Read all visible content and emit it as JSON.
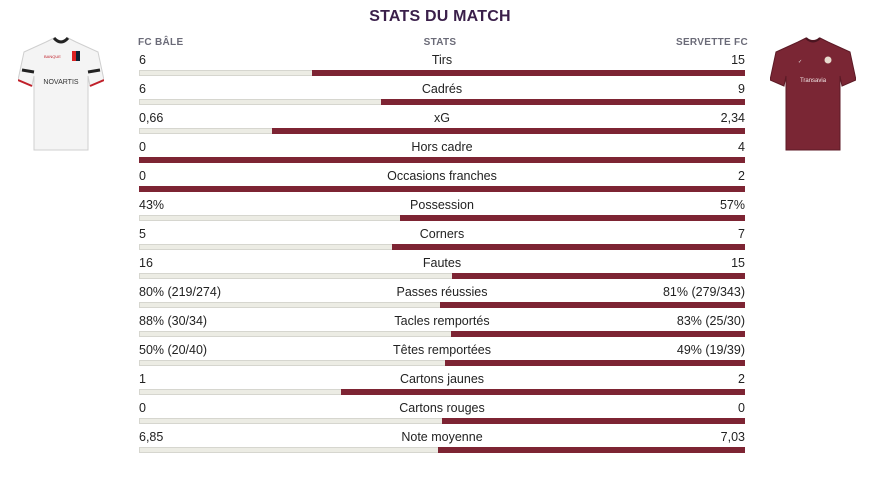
{
  "title": "STATS DU MATCH",
  "headers": {
    "home": "FC BÂLE",
    "stats": "STATS",
    "away": "SERVETTE FC"
  },
  "colors": {
    "away_bar": "#7d2433",
    "home_bar": "#ecece4",
    "title": "#3a1f4a"
  },
  "jerseys": {
    "home": {
      "sponsor": "NOVARTIS",
      "sleeve_text": "BANQUE"
    },
    "away": {
      "sponsor": "Transavia"
    }
  },
  "stats": [
    {
      "name": "Tirs",
      "home": "6",
      "away": "15",
      "home_share": 0.286
    },
    {
      "name": "Cadrés",
      "home": "6",
      "away": "9",
      "home_share": 0.4
    },
    {
      "name": "xG",
      "home": "0,66",
      "away": "2,34",
      "home_share": 0.22
    },
    {
      "name": "Hors cadre",
      "home": "0",
      "away": "4",
      "home_share": 0.0
    },
    {
      "name": "Occasions franches",
      "home": "0",
      "away": "2",
      "home_share": 0.0
    },
    {
      "name": "Possession",
      "home": "43%",
      "away": "57%",
      "home_share": 0.43
    },
    {
      "name": "Corners",
      "home": "5",
      "away": "7",
      "home_share": 0.417
    },
    {
      "name": "Fautes",
      "home": "16",
      "away": "15",
      "home_share": 0.516
    },
    {
      "name": "Passes réussies",
      "home": "80% (219/274)",
      "away": "81% (279/343)",
      "home_share": 0.497
    },
    {
      "name": "Tacles remportés",
      "home": "88% (30/34)",
      "away": "83% (25/30)",
      "home_share": 0.515
    },
    {
      "name": "Têtes remportées",
      "home": "50% (20/40)",
      "away": "49% (19/39)",
      "home_share": 0.505
    },
    {
      "name": "Cartons jaunes",
      "home": "1",
      "away": "2",
      "home_share": 0.333
    },
    {
      "name": "Cartons rouges",
      "home": "0",
      "away": "0",
      "home_share": 0.5
    },
    {
      "name": "Note moyenne",
      "home": "6,85",
      "away": "7,03",
      "home_share": 0.493
    }
  ]
}
